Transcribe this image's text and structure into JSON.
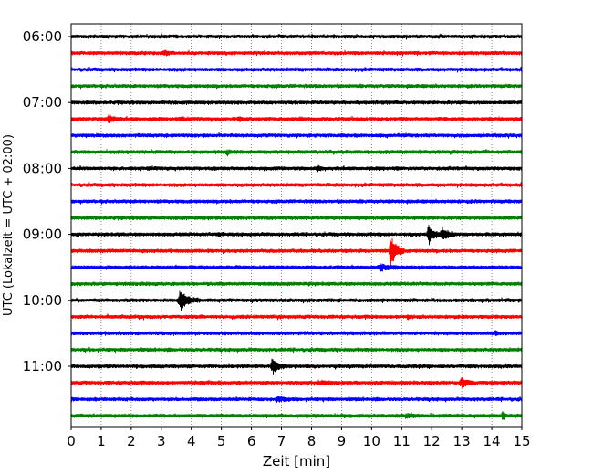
{
  "chart_data": {
    "type": "line",
    "title": "",
    "xlabel": "Zeit  [min]",
    "ylabel": "UTC (Lokalzeit = UTC + 02:00)",
    "xlim": [
      0,
      15
    ],
    "x_ticks": [
      0,
      1,
      2,
      3,
      4,
      5,
      6,
      7,
      8,
      9,
      10,
      11,
      12,
      13,
      14,
      15
    ],
    "x_tick_labels": [
      "0",
      "1",
      "2",
      "3",
      "4",
      "5",
      "6",
      "7",
      "8",
      "9",
      "10",
      "11",
      "12",
      "13",
      "14",
      "15"
    ],
    "y_tick_labels": [
      "06:00",
      "07:00",
      "08:00",
      "09:00",
      "10:00",
      "11:00"
    ],
    "grid": "vertical dotted",
    "trace_interval_minutes": 15,
    "trace_colors": [
      "#000000",
      "#ff0000",
      "#0000ff",
      "#008000"
    ],
    "trace_start_times": [
      "06:00",
      "06:15",
      "06:30",
      "06:45",
      "07:00",
      "07:15",
      "07:30",
      "07:45",
      "08:00",
      "08:15",
      "08:30",
      "08:45",
      "09:00",
      "09:15",
      "09:30",
      "09:45",
      "10:00",
      "10:15",
      "10:30",
      "10:45",
      "11:00",
      "11:15",
      "11:30",
      "11:45"
    ],
    "events": [
      {
        "trace": "06:15",
        "minute": 3.1,
        "amplitude": 0.4,
        "duration_min": 0.3
      },
      {
        "trace": "07:15",
        "minute": 1.25,
        "amplitude": 0.8,
        "duration_min": 0.3
      },
      {
        "trace": "07:15",
        "minute": 3.7,
        "amplitude": 0.2,
        "duration_min": 0.3
      },
      {
        "trace": "07:15",
        "minute": 5.6,
        "amplitude": 0.25,
        "duration_min": 0.3
      },
      {
        "trace": "07:15",
        "minute": 7.6,
        "amplitude": 0.2,
        "duration_min": 0.4
      },
      {
        "trace": "07:45",
        "minute": 5.2,
        "amplitude": 0.35,
        "duration_min": 0.3
      },
      {
        "trace": "08:00",
        "minute": 8.2,
        "amplitude": 0.35,
        "duration_min": 0.3
      },
      {
        "trace": "09:00",
        "minute": 4.9,
        "amplitude": 0.35,
        "duration_min": 0.2
      },
      {
        "trace": "09:00",
        "minute": 11.9,
        "amplitude": 1.6,
        "duration_min": 0.4
      },
      {
        "trace": "09:00",
        "minute": 12.35,
        "amplitude": 1.1,
        "duration_min": 0.4
      },
      {
        "trace": "09:15",
        "minute": 10.65,
        "amplitude": 2.8,
        "duration_min": 0.4
      },
      {
        "trace": "09:30",
        "minute": 10.3,
        "amplitude": 0.45,
        "duration_min": 0.7
      },
      {
        "trace": "10:00",
        "minute": 3.65,
        "amplitude": 1.6,
        "duration_min": 0.6
      },
      {
        "trace": "10:15",
        "minute": 11.2,
        "amplitude": 0.3,
        "duration_min": 0.2
      },
      {
        "trace": "10:30",
        "minute": 14.1,
        "amplitude": 0.3,
        "duration_min": 0.2
      },
      {
        "trace": "11:00",
        "minute": 6.7,
        "amplitude": 1.3,
        "duration_min": 0.4
      },
      {
        "trace": "11:15",
        "minute": 4.3,
        "amplitude": 0.2,
        "duration_min": 0.3
      },
      {
        "trace": "11:15",
        "minute": 8.3,
        "amplitude": 0.2,
        "duration_min": 0.6
      },
      {
        "trace": "11:15",
        "minute": 13.0,
        "amplitude": 0.9,
        "duration_min": 0.4
      },
      {
        "trace": "11:30",
        "minute": 6.9,
        "amplitude": 0.3,
        "duration_min": 0.6
      },
      {
        "trace": "11:45",
        "minute": 11.2,
        "amplitude": 0.25,
        "duration_min": 0.5
      },
      {
        "trace": "11:45",
        "minute": 14.35,
        "amplitude": 0.55,
        "duration_min": 0.2
      }
    ]
  }
}
